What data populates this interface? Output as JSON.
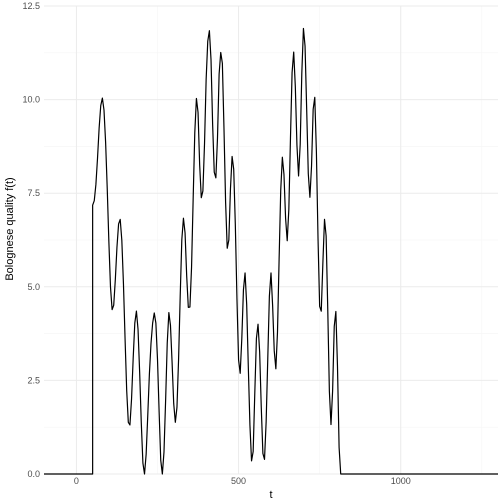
{
  "chart_data": {
    "type": "line",
    "xlabel": "t",
    "ylabel": "Bolognese quality f(t)",
    "xlim": [
      -100,
      1300
    ],
    "ylim": [
      0,
      12.5
    ],
    "x_ticks": [
      0,
      500,
      1000
    ],
    "x_tick_labels": [
      "0",
      "500",
      "1000"
    ],
    "y_ticks": [
      0,
      2.5,
      5,
      7.5,
      10,
      12.5
    ],
    "y_tick_labels": [
      "0.0",
      "2.5",
      "5.0",
      "7.5",
      "10.0",
      "12.5"
    ],
    "grid": true,
    "series": [
      {
        "x": [
          -100,
          50,
          50,
          55,
          60,
          65,
          70,
          75,
          80,
          85,
          90,
          95,
          100,
          105,
          110,
          115,
          120,
          125,
          130,
          135,
          140,
          145,
          150,
          155,
          160,
          165,
          170,
          175,
          180,
          185,
          190,
          195,
          200,
          205,
          210,
          215,
          220,
          225,
          230,
          235,
          240,
          245,
          250,
          255,
          260,
          265,
          270,
          275,
          280,
          285,
          290,
          295,
          300,
          305,
          310,
          315,
          320,
          325,
          330,
          335,
          340,
          345,
          350,
          355,
          360,
          365,
          370,
          375,
          380,
          385,
          390,
          395,
          400,
          405,
          410,
          415,
          420,
          425,
          430,
          435,
          440,
          445,
          450,
          455,
          460,
          465,
          470,
          475,
          480,
          485,
          490,
          495,
          500,
          505,
          510,
          515,
          520,
          525,
          530,
          535,
          540,
          545,
          550,
          555,
          560,
          565,
          570,
          575,
          580,
          585,
          590,
          595,
          600,
          605,
          610,
          615,
          620,
          625,
          630,
          635,
          640,
          645,
          650,
          655,
          660,
          665,
          670,
          675,
          680,
          685,
          690,
          695,
          700,
          705,
          710,
          715,
          720,
          725,
          730,
          735,
          740,
          745,
          750,
          755,
          760,
          765,
          770,
          775,
          780,
          785,
          790,
          795,
          800,
          805,
          810,
          815,
          820,
          825,
          830,
          835,
          840,
          845,
          850,
          855,
          860,
          865,
          870,
          875,
          880,
          885,
          890,
          895,
          900,
          905,
          910,
          915,
          920,
          925,
          930,
          935,
          940,
          945,
          950,
          955,
          960,
          965,
          970,
          975,
          980,
          985,
          990,
          995,
          1000,
          1005,
          1010,
          1015,
          1020,
          1025,
          1030,
          1035,
          1040,
          1045,
          1050,
          1055,
          1060,
          1065,
          1070,
          1075,
          1080,
          1085,
          1090,
          1095,
          1100,
          1105,
          1110,
          1115,
          1120,
          1125,
          1130,
          1135,
          1140,
          1145,
          1150,
          1155,
          1160,
          1165,
          1170,
          1175,
          1180,
          1185,
          1190,
          1195,
          1200,
          1200,
          1300
        ],
        "y": [
          0,
          0,
          7.18,
          7.3,
          7.73,
          8.43,
          9.24,
          9.84,
          10.04,
          9.72,
          8.86,
          7.62,
          6.21,
          5.0,
          4.39,
          4.51,
          5.2,
          6.06,
          6.68,
          6.8,
          6.24,
          5.08,
          3.61,
          2.23,
          1.38,
          1.31,
          2.01,
          3.09,
          4.03,
          4.35,
          3.86,
          2.71,
          1.36,
          0.29,
          0.0,
          0.53,
          1.57,
          2.67,
          3.49,
          4.03,
          4.3,
          4.03,
          3.06,
          1.66,
          0.37,
          0.0,
          0.59,
          1.96,
          3.49,
          4.31,
          3.97,
          2.98,
          1.88,
          1.38,
          1.78,
          3.06,
          4.75,
          6.26,
          6.83,
          6.44,
          5.29,
          4.45,
          4.46,
          5.52,
          7.36,
          9.12,
          10.03,
          9.66,
          8.26,
          7.38,
          7.56,
          8.82,
          10.54,
          11.56,
          11.84,
          11.07,
          9.34,
          8.06,
          7.91,
          8.97,
          10.68,
          11.26,
          10.97,
          9.23,
          7.26,
          6.03,
          6.25,
          7.62,
          8.48,
          8.14,
          6.65,
          4.68,
          3.05,
          2.69,
          3.62,
          4.92,
          5.37,
          4.53,
          2.87,
          1.31,
          0.35,
          0.6,
          2.16,
          3.62,
          4.0,
          3.26,
          1.78,
          0.55,
          0.39,
          1.39,
          3.07,
          4.75,
          5.37,
          4.5,
          3.29,
          2.81,
          3.79,
          5.74,
          7.58,
          8.46,
          8.0,
          6.83,
          6.23,
          7.07,
          8.96,
          10.72,
          11.27,
          10.35,
          8.78,
          7.96,
          8.8,
          10.7,
          11.9,
          11.43,
          9.75,
          8.02,
          7.39,
          8.23,
          9.74,
          10.06,
          8.6,
          6.29,
          4.48,
          4.35,
          5.65,
          6.8,
          6.36,
          4.41,
          2.21,
          1.32,
          2.22,
          3.94,
          4.34,
          2.88,
          0.71,
          0.0,
          0.0,
          0.0,
          0.0,
          0.0,
          0.0,
          0.0,
          0.0,
          0.0,
          0.0,
          0.0,
          0.0,
          0.0,
          0.0,
          0.0,
          0.0,
          0.0,
          0.0,
          0.0,
          0.0,
          0.0,
          0.0,
          0.0,
          0.0,
          0.0,
          0.0,
          0.0,
          0.0,
          0.0,
          0.0,
          0.0,
          0.0,
          0.0,
          0.0,
          0.0,
          0.0,
          0.0,
          0.0,
          0.0,
          0.0,
          0.0,
          0.0,
          0.0,
          0.0,
          0.0,
          0.0,
          0.0,
          0.0,
          0.0,
          0.0,
          0.0,
          0.0,
          0.0,
          0.0,
          0.0,
          0.0,
          0.0,
          0.0,
          0.0,
          0.0,
          0.0,
          0.0,
          0.0,
          0.0,
          0.0,
          0.0,
          0.0,
          0.0,
          0.0,
          0.0,
          0.0,
          0.0,
          0.0,
          0.0,
          0.0,
          0.0,
          0.0,
          0.0,
          0.0,
          0.0
        ]
      }
    ]
  }
}
